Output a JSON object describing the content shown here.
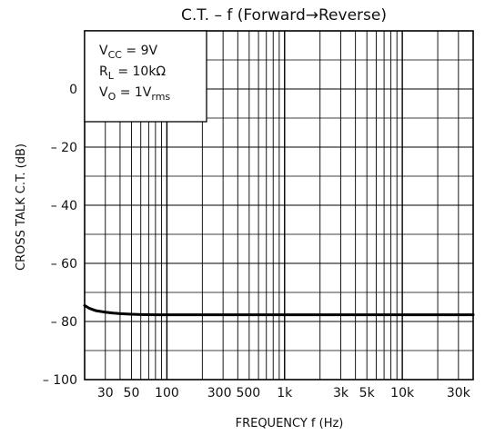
{
  "chart_data": {
    "type": "line",
    "title": "C.T.  –  f (Forward→Reverse)",
    "xlabel": "FREQUENCY   f   (Hz)",
    "ylabel": "CROSS TALK  C.T.  (dB)",
    "x_scale": "log",
    "xlim": [
      20,
      40000
    ],
    "ylim": [
      -100,
      20
    ],
    "grid": true,
    "x_ticks": [
      {
        "value": 30,
        "label": "30"
      },
      {
        "value": 50,
        "label": "50"
      },
      {
        "value": 100,
        "label": "100"
      },
      {
        "value": 300,
        "label": "300"
      },
      {
        "value": 500,
        "label": "500"
      },
      {
        "value": 1000,
        "label": "1k"
      },
      {
        "value": 3000,
        "label": "3k"
      },
      {
        "value": 5000,
        "label": "5k"
      },
      {
        "value": 10000,
        "label": "10k"
      },
      {
        "value": 30000,
        "label": "30k"
      }
    ],
    "y_ticks": [
      {
        "value": 0,
        "label": "0"
      },
      {
        "value": -20,
        "label": "– 20"
      },
      {
        "value": -40,
        "label": "– 40"
      },
      {
        "value": -60,
        "label": "– 60"
      },
      {
        "value": -80,
        "label": "– 80"
      },
      {
        "value": -100,
        "label": "– 100"
      }
    ],
    "conditions": [
      {
        "main": "V",
        "sub": "CC",
        "rest": " = 9V"
      },
      {
        "main": "R",
        "sub": "L",
        "rest": " = 10kΩ"
      },
      {
        "main": "V",
        "sub": "O",
        "rest": " = 1V",
        "sub2": "rms"
      }
    ],
    "series": [
      {
        "x": [
          20,
          22,
          25,
          30,
          35,
          40,
          50,
          60,
          80,
          100,
          200,
          500,
          1000,
          2000,
          5000,
          10000,
          20000,
          40000
        ],
        "y": [
          -74.5,
          -75.5,
          -76.3,
          -76.8,
          -77.1,
          -77.3,
          -77.5,
          -77.6,
          -77.7,
          -77.7,
          -77.7,
          -77.7,
          -77.7,
          -77.7,
          -77.7,
          -77.7,
          -77.7,
          -77.7
        ]
      }
    ]
  }
}
